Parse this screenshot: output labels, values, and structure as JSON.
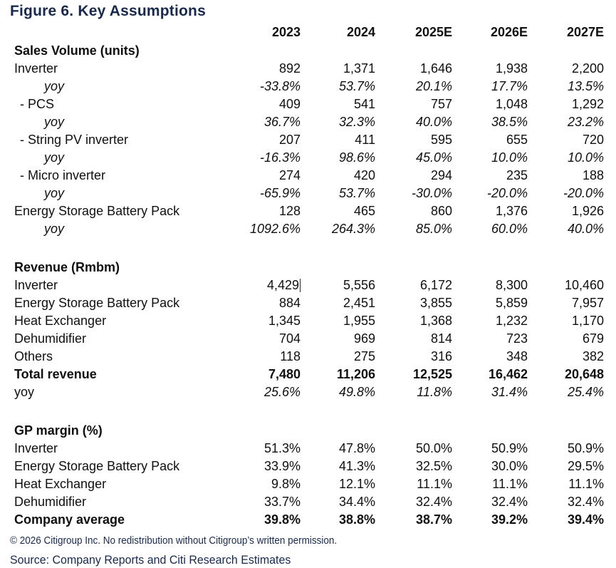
{
  "title": "Figure 6. Key Assumptions",
  "columns": [
    "2023",
    "2024",
    "2025E",
    "2026E",
    "2027E"
  ],
  "sections": [
    {
      "header": "Sales Volume (units)",
      "rows": [
        {
          "label": "Inverter",
          "style": "normal",
          "values": [
            "892",
            "1,371",
            "1,646",
            "1,938",
            "2,200"
          ]
        },
        {
          "label": "yoy",
          "style": "yoy-indent",
          "values": [
            "-33.8%",
            "53.7%",
            "20.1%",
            "17.7%",
            "13.5%"
          ]
        },
        {
          "label": "- PCS",
          "style": "dash",
          "values": [
            "409",
            "541",
            "757",
            "1,048",
            "1,292"
          ]
        },
        {
          "label": "yoy",
          "style": "yoy-indent",
          "values": [
            "36.7%",
            "32.3%",
            "40.0%",
            "38.5%",
            "23.2%"
          ]
        },
        {
          "label": "- String PV inverter",
          "style": "dash",
          "values": [
            "207",
            "411",
            "595",
            "655",
            "720"
          ]
        },
        {
          "label": "yoy",
          "style": "yoy-indent",
          "values": [
            "-16.3%",
            "98.6%",
            "45.0%",
            "10.0%",
            "10.0%"
          ]
        },
        {
          "label": "- Micro inverter",
          "style": "dash",
          "values": [
            "274",
            "420",
            "294",
            "235",
            "188"
          ]
        },
        {
          "label": "yoy",
          "style": "yoy-indent",
          "values": [
            "-65.9%",
            "53.7%",
            "-30.0%",
            "-20.0%",
            "-20.0%"
          ]
        },
        {
          "label": "Energy Storage Battery Pack",
          "style": "normal",
          "values": [
            "128",
            "465",
            "860",
            "1,376",
            "1,926"
          ]
        },
        {
          "label": "yoy",
          "style": "yoy-indent",
          "values": [
            "1092.6%",
            "264.3%",
            "85.0%",
            "60.0%",
            "40.0%"
          ]
        }
      ]
    },
    {
      "header": "Revenue (Rmbm)",
      "rows": [
        {
          "label": "Inverter",
          "style": "normal",
          "cursor": true,
          "values": [
            "4,429",
            "5,556",
            "6,172",
            "8,300",
            "10,460"
          ]
        },
        {
          "label": "Energy Storage Battery Pack",
          "style": "normal",
          "values": [
            "884",
            "2,451",
            "3,855",
            "5,859",
            "7,957"
          ]
        },
        {
          "label": "Heat Exchanger",
          "style": "normal",
          "values": [
            "1,345",
            "1,955",
            "1,368",
            "1,232",
            "1,170"
          ]
        },
        {
          "label": "Dehumidifier",
          "style": "normal",
          "values": [
            "704",
            "969",
            "814",
            "723",
            "679"
          ]
        },
        {
          "label": "Others",
          "style": "normal",
          "values": [
            "118",
            "275",
            "316",
            "348",
            "382"
          ]
        },
        {
          "label": "Total revenue",
          "style": "bold",
          "values": [
            "7,480",
            "11,206",
            "12,525",
            "16,462",
            "20,648"
          ]
        },
        {
          "label": "yoy",
          "style": "yoy-flat",
          "values": [
            "25.6%",
            "49.8%",
            "11.8%",
            "31.4%",
            "25.4%"
          ]
        }
      ]
    },
    {
      "header": "GP margin (%)",
      "rows": [
        {
          "label": "Inverter",
          "style": "normal",
          "values": [
            "51.3%",
            "47.8%",
            "50.0%",
            "50.9%",
            "50.9%"
          ]
        },
        {
          "label": "Energy Storage Battery Pack",
          "style": "normal",
          "values": [
            "33.9%",
            "41.3%",
            "32.5%",
            "30.0%",
            "29.5%"
          ]
        },
        {
          "label": "Heat Exchanger",
          "style": "normal",
          "values": [
            "9.8%",
            "12.1%",
            "11.1%",
            "11.1%",
            "11.1%"
          ]
        },
        {
          "label": "Dehumidifier",
          "style": "normal",
          "values": [
            "33.7%",
            "34.4%",
            "32.4%",
            "32.4%",
            "32.4%"
          ]
        },
        {
          "label": "Company average",
          "style": "bold",
          "values": [
            "39.8%",
            "38.8%",
            "38.7%",
            "39.2%",
            "39.4%"
          ]
        }
      ]
    }
  ],
  "footer": {
    "copyright": "© 2026 Citigroup Inc. No redistribution without Citigroup’s written permission.",
    "source": "Source: Company Reports and Citi Research Estimates"
  },
  "colors": {
    "title_navy": "#18294f",
    "body_text": "#101010",
    "background": "#ffffff"
  }
}
